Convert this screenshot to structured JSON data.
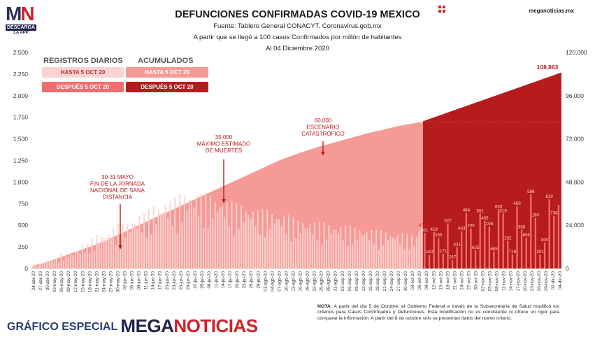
{
  "logo": {
    "mark_left": "M",
    "mark_right": "N",
    "badge": "DESCARGA",
    "badge_sub": "LA APP"
  },
  "header": {
    "title": "DEFUNCIONES CONFIRMADAS COVID-19 MEXICO",
    "source": "Fuente: Tablero General CONACYT. Coronavirus.gob.mx",
    "subtitle": "A partir que se llegó a 100 casos Confirmados por millón de habitantes",
    "date": "Al 04 Diciembre 2020",
    "site": "meganoticias.mx"
  },
  "legend": {
    "daily_header": "REGISTROS DIARIOS",
    "cum_header": "ACUMULADOS",
    "before_label": "HASTA 5 OCT 20",
    "after_label": "DESPUÉS 5 OCT 20",
    "colors": {
      "daily_before": "#fbd3d3",
      "daily_after": "#f26d6d",
      "cum_before": "#f59a94",
      "cum_after": "#b71c1c"
    }
  },
  "note": {
    "bold": "NOTA",
    "text": ": A partir del día 5 de Octubre, el Gobierno Federal a través de la Subsecretaría de Salud modificó los criterios para Casos Confirmados y Defunciones. Esta modificación no es consistente ni ofrece un rigor para comparar la información. A partir del 8 de octubre sólo se presentan datos del nuevo criterio."
  },
  "footer": {
    "label": "GRÁFICO ESPECIAL",
    "brand_a": "MEGA",
    "brand_b": "NOTICIAS"
  },
  "chart_data": {
    "type": "bar",
    "x_labels": [
      "24-abr-20",
      "27-abr-20",
      "30-abr-20",
      "03-may-20",
      "06-may-20",
      "09-may-20",
      "12-may-20",
      "15-may-20",
      "18-may-20",
      "21-may-20",
      "24-may-20",
      "27-may-20",
      "30-may-20",
      "02-jun-20",
      "05-jun-20",
      "08-jun-20",
      "11-jun-20",
      "14-jun-20",
      "17-jun-20",
      "20-jun-20",
      "23-jun-20",
      "26-jun-20",
      "29-jun-20",
      "02-jul-20",
      "05-jul-20",
      "08-jul-20",
      "11-jul-20",
      "14-jul-20",
      "17-jul-20",
      "20-jul-20",
      "23-jul-20",
      "26-jul-20",
      "29-jul-20",
      "01-ago-20",
      "04-ago-20",
      "07-ago-20",
      "10-ago-20",
      "13-ago-20",
      "16-ago-20",
      "19-ago-20",
      "22-ago-20",
      "25-ago-20",
      "28-ago-20",
      "31-ago-20",
      "03-sep-20",
      "06-sep-20",
      "09-sep-20",
      "12-sep-20",
      "15-sep-20",
      "18-sep-20",
      "21-sep-20",
      "24-sep-20",
      "27-sep-20",
      "30-sep-20",
      "03-oct-20",
      "06-oct-20",
      "09-oct-20",
      "12-oct-20",
      "15-oct-20",
      "18-oct-20",
      "21-oct-20",
      "24-oct-20",
      "27-oct-20",
      "30-oct-20",
      "02-nov-20",
      "05-nov-20",
      "08-nov-20",
      "11-nov-20",
      "14-nov-20",
      "17-nov-20",
      "20-nov-20",
      "23-nov-20",
      "26-nov-20",
      "29-nov-20",
      "02-dic-20",
      "04-dic-20"
    ],
    "y_left": {
      "ticks": [
        "0",
        "250",
        "500",
        "750",
        "1,000",
        "1,250",
        "1,500",
        "1,750",
        "2,000",
        "2,250",
        "2,500"
      ],
      "range": [
        0,
        2500
      ]
    },
    "y_right": {
      "ticks": [
        "0",
        "24,000",
        "48,000",
        "72,000",
        "96,000",
        "120,000"
      ],
      "range": [
        0,
        120000
      ]
    },
    "series": [
      {
        "name": "REGISTROS DIARIOS HASTA 5 OCT 20",
        "values": [
          40,
          60,
          90,
          110,
          150,
          170,
          200,
          250,
          300,
          350,
          380,
          420,
          450,
          480,
          520,
          560,
          600,
          640,
          680,
          700,
          720,
          760,
          780,
          780,
          760,
          740,
          720,
          700,
          680,
          660,
          640,
          620,
          600,
          600,
          580,
          560,
          540,
          520,
          500,
          490,
          480,
          470,
          460,
          450,
          440,
          430,
          420,
          410,
          400,
          390,
          380,
          370,
          360,
          350,
          340,
          471
        ]
      },
      {
        "name": "REGISTROS DIARIOS DESPUÉS 5 OCT 20",
        "values": [
          411,
          160,
          419,
          355,
          171,
          522,
          100,
          247,
          431,
          643,
          464,
          209,
          635,
          551,
          485,
          196,
          685,
          635,
          319,
          162,
          719,
          450,
          358,
          858,
          586,
          160,
          301,
          800,
          610,
          736
        ]
      },
      {
        "name": "ACUMULADOS HASTA 5 OCT 20",
        "values": [
          1300,
          2000,
          2500,
          3000,
          3800,
          4500,
          5200,
          6000,
          6800,
          7600,
          8400,
          9100,
          9900,
          10700,
          11500,
          12300,
          13100,
          14000,
          14900,
          15800,
          16800,
          17800,
          18800,
          19800,
          20800,
          21800,
          22800,
          23800,
          24800,
          25800,
          26800,
          27800,
          28800,
          29800,
          30800,
          31800,
          32800,
          33800,
          34800,
          35800,
          36800,
          37800,
          38800,
          39800,
          40800,
          41800,
          42800,
          43800,
          44800,
          45800,
          46800,
          47800,
          48800,
          49800,
          50800,
          51800,
          52800,
          53800,
          54800,
          55800,
          56800,
          57800,
          58800,
          59800,
          60700,
          61500,
          62300,
          63100,
          63900,
          64600,
          65300,
          66000,
          66700,
          67400,
          68000,
          68600,
          69200,
          69800,
          70400,
          71000,
          71600,
          72200,
          72800,
          73400,
          74000,
          74600,
          75200,
          75700,
          76200,
          76700,
          77200,
          77700,
          78200,
          78700,
          79200,
          79600,
          80000,
          80400,
          80800,
          81200
        ]
      },
      {
        "name": "ACUMULADOS DESPUÉS 5 OCT 20",
        "start_value": 81800,
        "end_value": 108863
      }
    ],
    "annotations": [
      {
        "text": "30-31 MAYO\nFIN DE LA JORNADA\nNACIONAL DE SANA\nDISTANCIA",
        "x": "30-may-20"
      },
      {
        "text": "35,000\nMÁXIMO ESTIMADO\nDE MUERTES",
        "x": "14-jul-20"
      },
      {
        "text": "60,000\nESCENARIO\n'CATASTRÓFICO'",
        "x": "22-ago-20"
      },
      {
        "text": "108,863",
        "x": "04-dic-20"
      }
    ],
    "after_daily_labels": [
      "411",
      "160",
      "419",
      "355",
      "171",
      "522",
      "247",
      "431",
      "643",
      "464",
      "209",
      "635",
      "551",
      "485",
      "196",
      "685",
      "635",
      "319",
      "162",
      "719",
      "450",
      "358",
      "858",
      "586",
      "160",
      "301",
      "800",
      "610",
      "736"
    ],
    "early_daily_label": "471",
    "grid": false
  }
}
